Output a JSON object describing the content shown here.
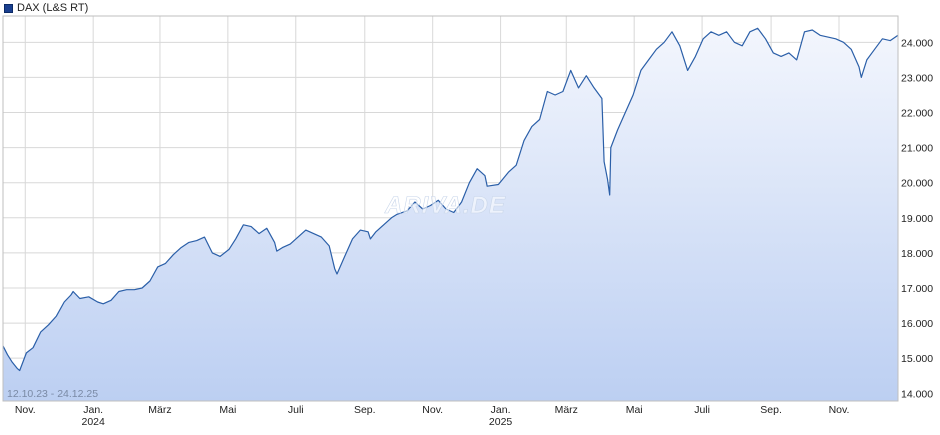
{
  "chart_data": {
    "type": "area",
    "legend": {
      "label": "DAX (L&S RT)",
      "placement": "top-left",
      "color": "#1a3f8f"
    },
    "range_label": "12.10.23 - 24.12.25",
    "watermark": "ARIVA.DE",
    "y_ticks": [
      "14.000",
      "15.000",
      "16.000",
      "17.000",
      "18.000",
      "19.000",
      "20.000",
      "21.000",
      "22.000",
      "23.000",
      "24.000"
    ],
    "y_tick_values": [
      14000,
      15000,
      16000,
      17000,
      18000,
      19000,
      20000,
      21000,
      22000,
      23000,
      24000
    ],
    "ylim": [
      13780,
      24750
    ],
    "xlim": [
      "2023-10-12",
      "2025-12-24"
    ],
    "x_ticks": [
      {
        "label": "Nov.",
        "sublabel": "",
        "date": "2023-11-01"
      },
      {
        "label": "Jan.",
        "sublabel": "2024",
        "date": "2024-01-01"
      },
      {
        "label": "März",
        "sublabel": "",
        "date": "2024-03-01"
      },
      {
        "label": "Mai",
        "sublabel": "",
        "date": "2024-05-01"
      },
      {
        "label": "Juli",
        "sublabel": "",
        "date": "2024-07-01"
      },
      {
        "label": "Sep.",
        "sublabel": "",
        "date": "2024-09-01"
      },
      {
        "label": "Nov.",
        "sublabel": "",
        "date": "2024-11-01"
      },
      {
        "label": "Jan.",
        "sublabel": "2025",
        "date": "2025-01-01"
      },
      {
        "label": "März",
        "sublabel": "",
        "date": "2025-03-01"
      },
      {
        "label": "Mai",
        "sublabel": "",
        "date": "2025-05-01"
      },
      {
        "label": "Juli",
        "sublabel": "",
        "date": "2025-07-01"
      },
      {
        "label": "Sep.",
        "sublabel": "",
        "date": "2025-09-01"
      },
      {
        "label": "Nov.",
        "sublabel": "",
        "date": "2025-11-01"
      }
    ],
    "grid": true,
    "colors": {
      "line": "#2b5fa8",
      "fill_top": "#f3f6fd",
      "fill_bottom": "#bccff2",
      "grid": "#d8d8d8",
      "frame": "#bfbfbf"
    },
    "series": [
      {
        "x": [
          "2023-10-12",
          "2023-10-16",
          "2023-10-20",
          "2023-10-25",
          "2023-10-27",
          "2023-11-02",
          "2023-11-08",
          "2023-11-15",
          "2023-11-22",
          "2023-11-29",
          "2023-12-06",
          "2023-12-12",
          "2023-12-14",
          "2023-12-20",
          "2023-12-28",
          "2024-01-05",
          "2024-01-10",
          "2024-01-17",
          "2024-01-24",
          "2024-01-31",
          "2024-02-07",
          "2024-02-14",
          "2024-02-21",
          "2024-02-28",
          "2024-03-06",
          "2024-03-13",
          "2024-03-20",
          "2024-03-27",
          "2024-04-03",
          "2024-04-10",
          "2024-04-17",
          "2024-04-24",
          "2024-05-02",
          "2024-05-08",
          "2024-05-15",
          "2024-05-22",
          "2024-05-29",
          "2024-06-05",
          "2024-06-12",
          "2024-06-14",
          "2024-06-19",
          "2024-06-26",
          "2024-07-03",
          "2024-07-10",
          "2024-07-17",
          "2024-07-24",
          "2024-07-31",
          "2024-08-05",
          "2024-08-07",
          "2024-08-14",
          "2024-08-21",
          "2024-08-28",
          "2024-09-04",
          "2024-09-06",
          "2024-09-11",
          "2024-09-18",
          "2024-09-25",
          "2024-09-30",
          "2024-10-09",
          "2024-10-16",
          "2024-10-23",
          "2024-10-30",
          "2024-11-06",
          "2024-11-13",
          "2024-11-20",
          "2024-11-27",
          "2024-12-04",
          "2024-12-11",
          "2024-12-18",
          "2024-12-20",
          "2024-12-30",
          "2025-01-08",
          "2025-01-15",
          "2025-01-22",
          "2025-01-29",
          "2025-02-05",
          "2025-02-12",
          "2025-02-19",
          "2025-02-26",
          "2025-03-05",
          "2025-03-12",
          "2025-03-19",
          "2025-03-26",
          "2025-04-02",
          "2025-04-04",
          "2025-04-07",
          "2025-04-09",
          "2025-04-10",
          "2025-04-16",
          "2025-04-23",
          "2025-04-30",
          "2025-05-07",
          "2025-05-14",
          "2025-05-21",
          "2025-05-28",
          "2025-06-04",
          "2025-06-11",
          "2025-06-18",
          "2025-06-25",
          "2025-07-02",
          "2025-07-09",
          "2025-07-16",
          "2025-07-23",
          "2025-07-30",
          "2025-08-06",
          "2025-08-13",
          "2025-08-20",
          "2025-08-27",
          "2025-09-03",
          "2025-09-10",
          "2025-09-17",
          "2025-09-24",
          "2025-10-01",
          "2025-10-08",
          "2025-10-15",
          "2025-10-22",
          "2025-10-29",
          "2025-11-05",
          "2025-11-12",
          "2025-11-19",
          "2025-11-21",
          "2025-11-26",
          "2025-12-03",
          "2025-12-10",
          "2025-12-17",
          "2025-12-24"
        ],
        "y": [
          15350,
          15100,
          14900,
          14700,
          14650,
          15150,
          15300,
          15750,
          15950,
          16200,
          16600,
          16800,
          16900,
          16700,
          16750,
          16600,
          16550,
          16650,
          16900,
          16950,
          16950,
          17000,
          17200,
          17600,
          17700,
          17950,
          18150,
          18300,
          18350,
          18450,
          18000,
          17900,
          18100,
          18400,
          18800,
          18750,
          18550,
          18700,
          18300,
          18050,
          18150,
          18250,
          18450,
          18650,
          18550,
          18450,
          18200,
          17550,
          17400,
          17900,
          18400,
          18650,
          18600,
          18400,
          18600,
          18800,
          19000,
          19100,
          19200,
          19450,
          19250,
          19350,
          19500,
          19250,
          19150,
          19450,
          20000,
          20400,
          20200,
          19900,
          19950,
          20300,
          20500,
          21200,
          21600,
          21800,
          22600,
          22500,
          22600,
          23200,
          22700,
          23050,
          22700,
          22400,
          20600,
          20100,
          19650,
          21000,
          21500,
          22000,
          22500,
          23200,
          23500,
          23800,
          24000,
          24300,
          23900,
          23200,
          23600,
          24100,
          24300,
          24200,
          24300,
          24000,
          23900,
          24300,
          24400,
          24100,
          23700,
          23600,
          23700,
          23500,
          24300,
          24350,
          24200,
          24150,
          24100,
          24000,
          23800,
          23300,
          23000,
          23500,
          23800,
          24100,
          24050,
          24200
        ]
      }
    ]
  }
}
